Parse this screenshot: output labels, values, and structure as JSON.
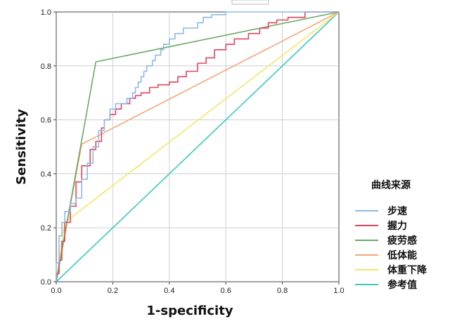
{
  "chart_data": {
    "type": "line",
    "title": "",
    "xlabel": "1-specificity",
    "ylabel": "Sensitivity",
    "xlim": [
      0,
      1
    ],
    "ylim": [
      0,
      1
    ],
    "x_ticks": [
      "0.0",
      "0.2",
      "0.4",
      "0.6",
      "0.8",
      "1.0"
    ],
    "y_ticks": [
      "0.0",
      "0.2",
      "0.4",
      "0.6",
      "0.8",
      "1.0"
    ],
    "grid": "horizontal and vertical at 0.2, 0.4, 0.6, 0.8",
    "legend_title": "曲线来源",
    "legend_position": "right",
    "series": [
      {
        "name": "步速",
        "color": "#8fb8e6",
        "x": [
          0,
          0,
          0.01,
          0.01,
          0.02,
          0.02,
          0.03,
          0.03,
          0.05,
          0.05,
          0.07,
          0.07,
          0.09,
          0.09,
          0.11,
          0.11,
          0.13,
          0.13,
          0.15,
          0.15,
          0.17,
          0.17,
          0.19,
          0.19,
          0.21,
          0.21,
          0.25,
          0.25,
          0.27,
          0.27,
          0.28,
          0.28,
          0.29,
          0.29,
          0.3,
          0.3,
          0.31,
          0.31,
          0.32,
          0.32,
          0.34,
          0.34,
          0.35,
          0.35,
          0.37,
          0.37,
          0.38,
          0.38,
          0.4,
          0.4,
          0.42,
          0.42,
          0.45,
          0.45,
          0.5,
          0.5,
          0.52,
          0.52,
          0.55,
          0.55,
          0.6,
          0.6,
          0.65,
          0.65,
          1.0
        ],
        "y": [
          0,
          0.07,
          0.07,
          0.17,
          0.17,
          0.22,
          0.22,
          0.26,
          0.26,
          0.29,
          0.29,
          0.31,
          0.31,
          0.38,
          0.38,
          0.44,
          0.44,
          0.5,
          0.5,
          0.56,
          0.56,
          0.6,
          0.6,
          0.64,
          0.64,
          0.66,
          0.66,
          0.68,
          0.68,
          0.7,
          0.7,
          0.72,
          0.72,
          0.74,
          0.74,
          0.76,
          0.76,
          0.78,
          0.78,
          0.8,
          0.8,
          0.82,
          0.82,
          0.84,
          0.84,
          0.86,
          0.86,
          0.88,
          0.88,
          0.9,
          0.9,
          0.92,
          0.92,
          0.94,
          0.94,
          0.96,
          0.96,
          0.98,
          0.98,
          0.99,
          0.99,
          1.0,
          1.0,
          1.0,
          1.0
        ]
      },
      {
        "name": "握力",
        "color": "#e0435f",
        "x": [
          0,
          0,
          0.01,
          0.01,
          0.02,
          0.02,
          0.03,
          0.03,
          0.05,
          0.05,
          0.07,
          0.07,
          0.09,
          0.09,
          0.12,
          0.12,
          0.14,
          0.14,
          0.16,
          0.16,
          0.17,
          0.17,
          0.19,
          0.19,
          0.21,
          0.21,
          0.23,
          0.23,
          0.26,
          0.26,
          0.28,
          0.28,
          0.3,
          0.3,
          0.33,
          0.33,
          0.36,
          0.36,
          0.4,
          0.4,
          0.43,
          0.43,
          0.46,
          0.46,
          0.5,
          0.5,
          0.53,
          0.53,
          0.56,
          0.56,
          0.6,
          0.6,
          0.63,
          0.63,
          0.68,
          0.68,
          0.72,
          0.72,
          0.75,
          0.75,
          0.78,
          0.78,
          0.82,
          0.82,
          0.88,
          0.88,
          1.0
        ],
        "y": [
          0,
          0.03,
          0.03,
          0.08,
          0.08,
          0.15,
          0.15,
          0.22,
          0.22,
          0.28,
          0.28,
          0.37,
          0.37,
          0.43,
          0.43,
          0.49,
          0.49,
          0.52,
          0.52,
          0.57,
          0.57,
          0.6,
          0.6,
          0.62,
          0.62,
          0.64,
          0.64,
          0.66,
          0.66,
          0.68,
          0.68,
          0.69,
          0.69,
          0.7,
          0.7,
          0.72,
          0.72,
          0.73,
          0.73,
          0.74,
          0.74,
          0.76,
          0.76,
          0.78,
          0.78,
          0.81,
          0.81,
          0.83,
          0.83,
          0.86,
          0.86,
          0.88,
          0.88,
          0.9,
          0.9,
          0.92,
          0.92,
          0.94,
          0.94,
          0.96,
          0.96,
          0.97,
          0.97,
          0.98,
          0.98,
          1.0,
          1.0
        ]
      },
      {
        "name": "疲劳感",
        "color": "#6aaa64",
        "x": [
          0,
          0.14,
          1.0
        ],
        "y": [
          0,
          0.815,
          1.0
        ]
      },
      {
        "name": "低体能",
        "color": "#f5a77a",
        "x": [
          0,
          0.09,
          1.0
        ],
        "y": [
          0,
          0.51,
          1.0
        ]
      },
      {
        "name": "体重下降",
        "color": "#f2e66a",
        "x": [
          0,
          0.03,
          1.0
        ],
        "y": [
          0,
          0.22,
          1.0
        ]
      },
      {
        "name": "参考值",
        "color": "#3cc9c0",
        "x": [
          0,
          1.0
        ],
        "y": [
          0,
          1.0
        ]
      }
    ]
  }
}
